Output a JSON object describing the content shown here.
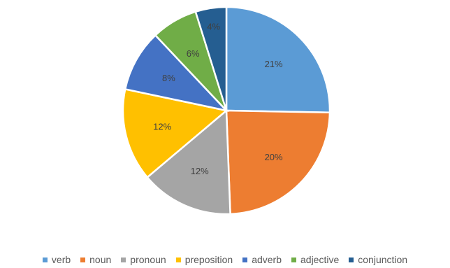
{
  "chart_data": {
    "type": "pie",
    "title": "",
    "categories": [
      "verb",
      "noun",
      "pronoun",
      "preposition",
      "adverb",
      "adjective",
      "conjunction"
    ],
    "values": [
      21,
      20,
      12,
      12,
      8,
      6,
      4
    ],
    "labels": [
      "21%",
      "20%",
      "12%",
      "12%",
      "8%",
      "6%",
      "4%"
    ],
    "colors": [
      "#5b9bd5",
      "#ed7d31",
      "#a5a5a5",
      "#ffc000",
      "#4472c4",
      "#70ad47",
      "#255e91"
    ],
    "legend_position": "bottom"
  }
}
